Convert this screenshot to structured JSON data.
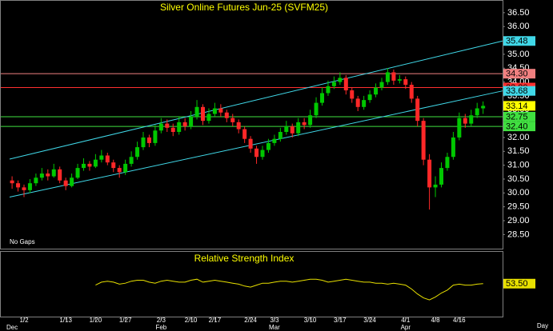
{
  "chart_data": {
    "type": "candlestick",
    "title": "Silver Online Futures Jun-25 (SVFM25)",
    "note": "No Gaps",
    "x_label": "Day",
    "categories": [
      null,
      null,
      "1/2",
      null,
      null,
      null,
      null,
      null,
      null,
      "1/13",
      null,
      null,
      null,
      null,
      "1/20",
      null,
      null,
      null,
      null,
      "1/27",
      null,
      null,
      null,
      null,
      null,
      "2/3",
      null,
      null,
      null,
      null,
      "2/10",
      null,
      null,
      null,
      "2/17",
      null,
      null,
      null,
      null,
      null,
      "2/24",
      null,
      null,
      null,
      "3/3",
      null,
      null,
      null,
      null,
      null,
      "3/10",
      null,
      null,
      null,
      null,
      "3/17",
      null,
      null,
      null,
      null,
      "3/24",
      null,
      null,
      null,
      null,
      null,
      "4/1",
      null,
      null,
      null,
      null,
      "4/8",
      null,
      null,
      null,
      "4/16",
      null,
      null,
      null,
      null
    ],
    "months": [
      "Dec",
      null,
      null,
      null,
      null,
      null,
      null,
      null,
      null,
      null,
      null,
      null,
      null,
      null,
      null,
      null,
      null,
      null,
      null,
      null,
      null,
      null,
      null,
      null,
      null,
      "Feb",
      null,
      null,
      null,
      null,
      null,
      null,
      null,
      null,
      null,
      null,
      null,
      null,
      null,
      null,
      null,
      null,
      null,
      null,
      "Mar",
      null,
      null,
      null,
      null,
      null,
      null,
      null,
      null,
      null,
      null,
      null,
      null,
      null,
      null,
      null,
      null,
      null,
      null,
      null,
      null,
      null,
      "Apr",
      null,
      null,
      null,
      null,
      null,
      null,
      null,
      null,
      null,
      null,
      null,
      null,
      null
    ],
    "open": [
      30.45,
      30.35,
      30.2,
      30.1,
      30.35,
      30.55,
      30.7,
      30.6,
      30.85,
      30.45,
      30.25,
      30.55,
      30.9,
      31.05,
      30.95,
      31.2,
      31.35,
      31.1,
      30.9,
      30.75,
      31.05,
      31.3,
      31.65,
      32.0,
      31.8,
      32.25,
      32.5,
      32.35,
      32.2,
      32.55,
      32.4,
      32.75,
      33.1,
      32.6,
      32.85,
      33.05,
      32.9,
      32.7,
      32.55,
      32.3,
      31.95,
      31.6,
      31.3,
      31.55,
      31.8,
      31.95,
      32.2,
      32.4,
      32.15,
      32.55,
      32.45,
      32.8,
      33.25,
      33.6,
      33.85,
      34.0,
      34.15,
      33.7,
      33.4,
      33.1,
      33.35,
      33.55,
      33.8,
      34.0,
      34.35,
      34.05,
      34.1,
      33.9,
      33.4,
      32.6,
      31.2,
      30.2,
      30.3,
      30.9,
      31.3,
      32.0,
      32.7,
      32.5,
      32.8,
      33.05
    ],
    "high": [
      30.6,
      30.45,
      30.3,
      30.5,
      30.7,
      30.9,
      30.85,
      31.05,
      30.95,
      30.55,
      30.7,
      31.05,
      31.25,
      31.15,
      31.4,
      31.55,
      31.45,
      31.2,
      31.0,
      31.2,
      31.5,
      31.85,
      32.2,
      32.1,
      32.45,
      32.7,
      32.65,
      32.5,
      32.75,
      32.7,
      32.95,
      33.35,
      33.2,
      33.05,
      33.25,
      33.2,
      33.0,
      32.85,
      32.65,
      32.4,
      32.05,
      31.7,
      31.7,
      31.95,
      32.1,
      32.35,
      32.6,
      32.5,
      32.7,
      32.7,
      33.0,
      33.45,
      33.8,
      34.05,
      34.2,
      34.35,
      34.25,
      33.8,
      33.5,
      33.5,
      33.7,
      33.95,
      34.15,
      34.5,
      34.45,
      34.25,
      34.2,
      34.0,
      33.5,
      32.7,
      31.4,
      30.6,
      31.1,
      31.45,
      32.2,
      32.9,
      32.85,
      33.0,
      33.25,
      33.3
    ],
    "low": [
      30.15,
      30.05,
      29.85,
      30.0,
      30.25,
      30.45,
      30.45,
      30.55,
      30.35,
      30.1,
      30.2,
      30.5,
      30.8,
      30.8,
      30.9,
      31.1,
      31.0,
      30.75,
      30.55,
      30.65,
      30.95,
      31.2,
      31.55,
      31.65,
      31.7,
      32.15,
      32.2,
      32.05,
      32.1,
      32.25,
      32.3,
      32.65,
      32.45,
      32.5,
      32.75,
      32.75,
      32.55,
      32.4,
      32.15,
      31.8,
      31.45,
      31.05,
      31.2,
      31.45,
      31.7,
      31.85,
      32.1,
      32.0,
      32.05,
      32.3,
      32.35,
      32.7,
      33.15,
      33.5,
      33.75,
      33.9,
      33.55,
      33.25,
      32.95,
      33.0,
      33.25,
      33.45,
      33.7,
      33.9,
      33.9,
      33.95,
      33.75,
      33.25,
      32.4,
      31.0,
      29.4,
      29.85,
      30.2,
      30.8,
      31.2,
      31.9,
      32.35,
      32.4,
      32.7,
      32.85
    ],
    "close": [
      30.35,
      30.2,
      30.1,
      30.35,
      30.55,
      30.7,
      30.6,
      30.85,
      30.45,
      30.25,
      30.55,
      30.9,
      31.05,
      30.95,
      31.2,
      31.35,
      31.1,
      30.9,
      30.75,
      31.05,
      31.3,
      31.65,
      32.0,
      31.8,
      32.25,
      32.5,
      32.35,
      32.2,
      32.55,
      32.4,
      32.75,
      33.1,
      32.6,
      32.85,
      33.05,
      32.9,
      32.7,
      32.55,
      32.3,
      31.95,
      31.6,
      31.3,
      31.55,
      31.8,
      31.95,
      32.2,
      32.4,
      32.15,
      32.55,
      32.45,
      32.8,
      33.25,
      33.6,
      33.85,
      34.0,
      34.15,
      33.7,
      33.4,
      33.1,
      33.35,
      33.55,
      33.8,
      34.0,
      34.35,
      34.05,
      34.1,
      33.9,
      33.4,
      32.6,
      31.2,
      30.2,
      30.3,
      30.9,
      31.3,
      32.0,
      32.7,
      32.5,
      32.8,
      33.05,
      33.14
    ],
    "up_color": "#00c800",
    "down_color": "#ff2828",
    "last_color": "#ffff00",
    "ylim": [
      28.02,
      36.9
    ],
    "yticks": [
      {
        "value": 28.5,
        "label": "28.50"
      },
      {
        "value": 29,
        "label": "29.00"
      },
      {
        "value": 29.5,
        "label": "29.50"
      },
      {
        "value": 30,
        "label": "30.00"
      },
      {
        "value": 30.5,
        "label": "30.50"
      },
      {
        "value": 31,
        "label": "31.00"
      },
      {
        "value": 31.5,
        "label": "31.50"
      },
      {
        "value": 32,
        "label": "32.00"
      },
      {
        "value": 32.5,
        "label": "32.50"
      },
      {
        "value": 33,
        "label": "33.00"
      },
      {
        "value": 33.5,
        "label": "33.50"
      },
      {
        "value": 34,
        "label": "34.00"
      },
      {
        "value": 34.5,
        "label": "34.50"
      },
      {
        "value": 35,
        "label": "35.00"
      },
      {
        "value": 35.5,
        "label": "35.50"
      },
      {
        "value": 36,
        "label": "36.00"
      },
      {
        "value": 36.5,
        "label": "36.50"
      }
    ],
    "levels": [
      {
        "value": 34.3,
        "label": "34.30",
        "color": "#f08080"
      },
      {
        "value": 33.8,
        "label": "33.80",
        "color": "#ff3030"
      },
      {
        "value": 32.75,
        "label": "32.75",
        "color": "#40e040"
      },
      {
        "value": 32.4,
        "label": "32.40",
        "color": "#40e040"
      }
    ],
    "channels": [
      {
        "from": 31.22,
        "to": 35.48,
        "color": "#40d8e8"
      },
      {
        "from": 29.85,
        "to": 33.68,
        "color": "#40d8e8"
      }
    ],
    "rsi": {
      "title": "Relative Strength Index",
      "color": "#e8e000",
      "ylim": [
        20,
        85
      ],
      "values": [
        null,
        null,
        null,
        null,
        null,
        null,
        null,
        null,
        null,
        null,
        null,
        null,
        null,
        null,
        52,
        55,
        56,
        55,
        53,
        54,
        56,
        57,
        57,
        55,
        54,
        56,
        57,
        56,
        55,
        55,
        57,
        58,
        55,
        56,
        57,
        56,
        55,
        54,
        53,
        51,
        50,
        52,
        54,
        54,
        55,
        56,
        56,
        55,
        56,
        57,
        58,
        58,
        57,
        55,
        56,
        57,
        58,
        57,
        56,
        55,
        55,
        54,
        54,
        53,
        54,
        53,
        52,
        48,
        43,
        39,
        37,
        40,
        44,
        47,
        52,
        53,
        52,
        52,
        53,
        53.5
      ],
      "last_label": "53.50"
    }
  }
}
